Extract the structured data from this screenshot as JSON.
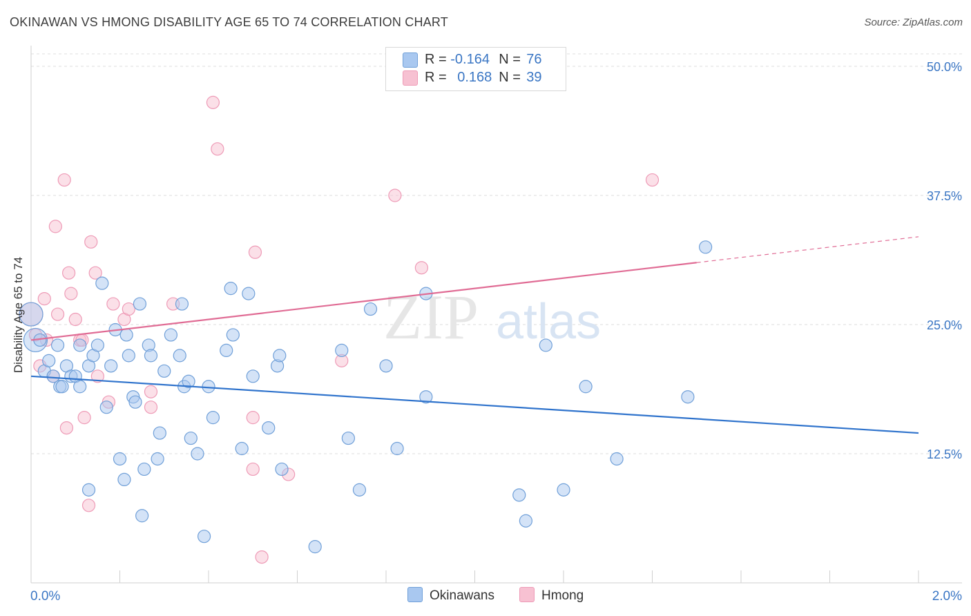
{
  "title": "OKINAWAN VS HMONG DISABILITY AGE 65 TO 74 CORRELATION CHART",
  "source": "Source: ZipAtlas.com",
  "watermark": {
    "zip": "ZIP",
    "atlas": "atlas"
  },
  "legend": {
    "rows": [
      {
        "r_label": "R = ",
        "r_value": "-0.164",
        "n_label": "N = ",
        "n_value": "76"
      },
      {
        "r_label": "R = ",
        "r_value": "0.168",
        "n_label": "N = ",
        "n_value": "39"
      }
    ]
  },
  "bottom_legend": {
    "okinawans": "Okinawans",
    "hmong": "Hmong"
  },
  "colors": {
    "okinawan_fill": "#a9c8f0",
    "okinawan_stroke": "#6f9fd8",
    "okinawan_line": "#2f73cc",
    "hmong_fill": "#f7c1d2",
    "hmong_stroke": "#ee9ab6",
    "hmong_line": "#e06b94",
    "axis_label": "#3a76c4",
    "grid": "#dcdcdc"
  },
  "chart_data": {
    "type": "scatter",
    "title": "OKINAWAN VS HMONG DISABILITY AGE 65 TO 74 CORRELATION CHART",
    "xlabel": "",
    "ylabel": "Disability Age 65 to 74",
    "xlim": [
      0,
      2.0
    ],
    "ylim": [
      0,
      50
    ],
    "x_tick_labels": [
      "0.0%",
      "2.0%"
    ],
    "y_ticks": [
      12.5,
      25.0,
      37.5,
      50.0
    ],
    "y_tick_labels": [
      "12.5%",
      "25.0%",
      "37.5%",
      "50.0%"
    ],
    "series": [
      {
        "name": "Okinawans",
        "r": -0.164,
        "n": 76,
        "trend": {
          "x0": 0.0,
          "y0": 20.0,
          "x1": 2.0,
          "y1": 14.5
        },
        "points": [
          {
            "x": 0.0,
            "y": 26.0,
            "big": true
          },
          {
            "x": 0.01,
            "y": 23.5,
            "big": true
          },
          {
            "x": 0.02,
            "y": 23.5
          },
          {
            "x": 0.03,
            "y": 20.5
          },
          {
            "x": 0.04,
            "y": 21.5
          },
          {
            "x": 0.05,
            "y": 20.0
          },
          {
            "x": 0.06,
            "y": 23.0
          },
          {
            "x": 0.065,
            "y": 19.0
          },
          {
            "x": 0.07,
            "y": 19.0
          },
          {
            "x": 0.08,
            "y": 21.0
          },
          {
            "x": 0.09,
            "y": 20.0
          },
          {
            "x": 0.1,
            "y": 20.0
          },
          {
            "x": 0.11,
            "y": 19.0
          },
          {
            "x": 0.11,
            "y": 23.0
          },
          {
            "x": 0.13,
            "y": 21.0
          },
          {
            "x": 0.13,
            "y": 9.0
          },
          {
            "x": 0.14,
            "y": 22.0
          },
          {
            "x": 0.15,
            "y": 23.0
          },
          {
            "x": 0.16,
            "y": 29.0
          },
          {
            "x": 0.17,
            "y": 17.0
          },
          {
            "x": 0.18,
            "y": 21.0
          },
          {
            "x": 0.19,
            "y": 24.5
          },
          {
            "x": 0.2,
            "y": 12.0
          },
          {
            "x": 0.21,
            "y": 10.0
          },
          {
            "x": 0.215,
            "y": 24.0
          },
          {
            "x": 0.22,
            "y": 22.0
          },
          {
            "x": 0.23,
            "y": 18.0
          },
          {
            "x": 0.235,
            "y": 17.5
          },
          {
            "x": 0.245,
            "y": 27.0
          },
          {
            "x": 0.25,
            "y": 6.5
          },
          {
            "x": 0.255,
            "y": 11.0
          },
          {
            "x": 0.265,
            "y": 23.0
          },
          {
            "x": 0.27,
            "y": 22.0
          },
          {
            "x": 0.285,
            "y": 12.0
          },
          {
            "x": 0.29,
            "y": 14.5
          },
          {
            "x": 0.3,
            "y": 20.5
          },
          {
            "x": 0.315,
            "y": 24.0
          },
          {
            "x": 0.335,
            "y": 22.0
          },
          {
            "x": 0.34,
            "y": 27.0
          },
          {
            "x": 0.345,
            "y": 19.0
          },
          {
            "x": 0.355,
            "y": 19.5
          },
          {
            "x": 0.36,
            "y": 14.0
          },
          {
            "x": 0.375,
            "y": 12.5
          },
          {
            "x": 0.39,
            "y": 4.5
          },
          {
            "x": 0.4,
            "y": 19.0
          },
          {
            "x": 0.41,
            "y": 16.0
          },
          {
            "x": 0.44,
            "y": 22.5
          },
          {
            "x": 0.45,
            "y": 28.5
          },
          {
            "x": 0.455,
            "y": 24.0
          },
          {
            "x": 0.475,
            "y": 13.0
          },
          {
            "x": 0.49,
            "y": 28.0
          },
          {
            "x": 0.5,
            "y": 20.0
          },
          {
            "x": 0.535,
            "y": 15.0
          },
          {
            "x": 0.555,
            "y": 21.0
          },
          {
            "x": 0.56,
            "y": 22.0
          },
          {
            "x": 0.565,
            "y": 11.0
          },
          {
            "x": 0.64,
            "y": 3.5
          },
          {
            "x": 0.7,
            "y": 22.5
          },
          {
            "x": 0.715,
            "y": 14.0
          },
          {
            "x": 0.74,
            "y": 9.0
          },
          {
            "x": 0.765,
            "y": 26.5
          },
          {
            "x": 0.8,
            "y": 21.0
          },
          {
            "x": 0.825,
            "y": 13.0
          },
          {
            "x": 0.89,
            "y": 18.0
          },
          {
            "x": 0.89,
            "y": 28.0
          },
          {
            "x": 1.1,
            "y": 8.5
          },
          {
            "x": 1.115,
            "y": 6.0
          },
          {
            "x": 1.16,
            "y": 23.0
          },
          {
            "x": 1.2,
            "y": 9.0
          },
          {
            "x": 1.25,
            "y": 19.0
          },
          {
            "x": 1.32,
            "y": 12.0
          },
          {
            "x": 1.48,
            "y": 18.0
          },
          {
            "x": 1.52,
            "y": 32.5
          }
        ]
      },
      {
        "name": "Hmong",
        "r": 0.168,
        "n": 39,
        "trend": {
          "x0": 0.0,
          "y0": 23.5,
          "x1": 1.5,
          "y1": 31.0,
          "dash_to_x": 2.0,
          "dash_to_y": 33.5
        },
        "points": [
          {
            "x": 0.0,
            "y": 26.0,
            "big": true
          },
          {
            "x": 0.01,
            "y": 24.0
          },
          {
            "x": 0.02,
            "y": 21.0
          },
          {
            "x": 0.03,
            "y": 27.5
          },
          {
            "x": 0.035,
            "y": 23.5
          },
          {
            "x": 0.05,
            "y": 20.0
          },
          {
            "x": 0.055,
            "y": 34.5
          },
          {
            "x": 0.06,
            "y": 26.0
          },
          {
            "x": 0.075,
            "y": 39.0
          },
          {
            "x": 0.08,
            "y": 15.0
          },
          {
            "x": 0.085,
            "y": 30.0
          },
          {
            "x": 0.09,
            "y": 28.0
          },
          {
            "x": 0.1,
            "y": 25.5
          },
          {
            "x": 0.11,
            "y": 23.5
          },
          {
            "x": 0.115,
            "y": 23.5
          },
          {
            "x": 0.12,
            "y": 16.0
          },
          {
            "x": 0.13,
            "y": 7.5
          },
          {
            "x": 0.135,
            "y": 33.0
          },
          {
            "x": 0.145,
            "y": 30.0
          },
          {
            "x": 0.15,
            "y": 20.0
          },
          {
            "x": 0.175,
            "y": 17.5
          },
          {
            "x": 0.185,
            "y": 27.0
          },
          {
            "x": 0.21,
            "y": 25.5
          },
          {
            "x": 0.22,
            "y": 26.5
          },
          {
            "x": 0.27,
            "y": 17.0
          },
          {
            "x": 0.27,
            "y": 18.5
          },
          {
            "x": 0.32,
            "y": 27.0
          },
          {
            "x": 0.41,
            "y": 46.5
          },
          {
            "x": 0.42,
            "y": 42.0
          },
          {
            "x": 0.5,
            "y": 11.0
          },
          {
            "x": 0.505,
            "y": 32.0
          },
          {
            "x": 0.5,
            "y": 16.0
          },
          {
            "x": 0.52,
            "y": 2.5
          },
          {
            "x": 0.58,
            "y": 10.5
          },
          {
            "x": 0.7,
            "y": 21.5
          },
          {
            "x": 0.82,
            "y": 37.5
          },
          {
            "x": 0.88,
            "y": 30.5
          },
          {
            "x": 1.4,
            "y": 39.0
          }
        ]
      }
    ]
  }
}
